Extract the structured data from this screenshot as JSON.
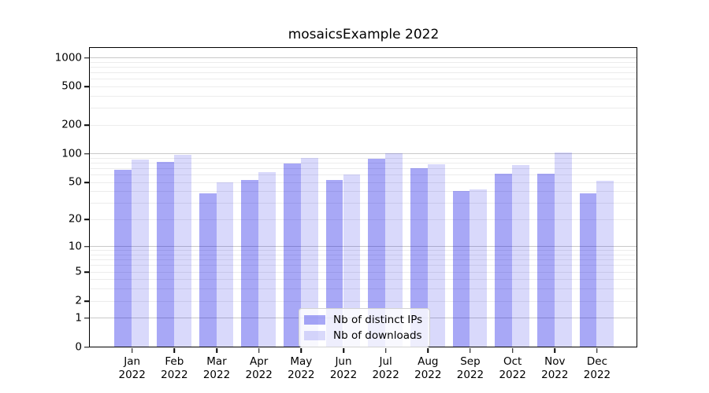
{
  "title": "mosaicsExample 2022",
  "chart_data": {
    "type": "bar",
    "title": "mosaicsExample 2022",
    "categories": [
      "Jan",
      "Feb",
      "Mar",
      "Apr",
      "May",
      "Jun",
      "Jul",
      "Aug",
      "Sep",
      "Oct",
      "Nov",
      "Dec"
    ],
    "x_tick_year": "2022",
    "series": [
      {
        "name": "Nb of distinct IPs",
        "values": [
          68,
          82,
          38,
          53,
          78,
          53,
          88,
          70,
          40,
          61,
          61,
          38
        ]
      },
      {
        "name": "Nb of downloads",
        "values": [
          86,
          96,
          50,
          64,
          89,
          60,
          101,
          77,
          42,
          75,
          103,
          52
        ]
      }
    ],
    "y_axis": {
      "scale": "log1p",
      "tick_values": [
        0,
        1,
        2,
        5,
        10,
        20,
        50,
        100,
        200,
        500,
        1000
      ],
      "tick_labels": [
        "0",
        "1",
        "2",
        "5",
        "10",
        "20",
        "50",
        "100",
        "200",
        "500",
        "1000"
      ],
      "range": [
        0,
        1000
      ]
    },
    "grid": {
      "enabled": true,
      "major_decades": [
        1,
        10,
        100,
        1000
      ],
      "minor_subs": [
        2,
        3,
        4,
        5,
        6,
        7,
        8,
        9
      ]
    },
    "legend": {
      "position": "lower-center-inside",
      "entries": [
        "Nb of distinct IPs",
        "Nb of downloads"
      ]
    }
  },
  "colors": {
    "bar_distinct_ips": "rgba(0,0,230,0.34)",
    "bar_downloads": "rgba(0,0,230,0.15)",
    "grid_major": "#c9c9c9",
    "grid_minor": "#ececec",
    "axis": "#000000",
    "legend_border": "#d2d2d2",
    "legend_bg": "rgba(255,255,255,0.8)"
  }
}
